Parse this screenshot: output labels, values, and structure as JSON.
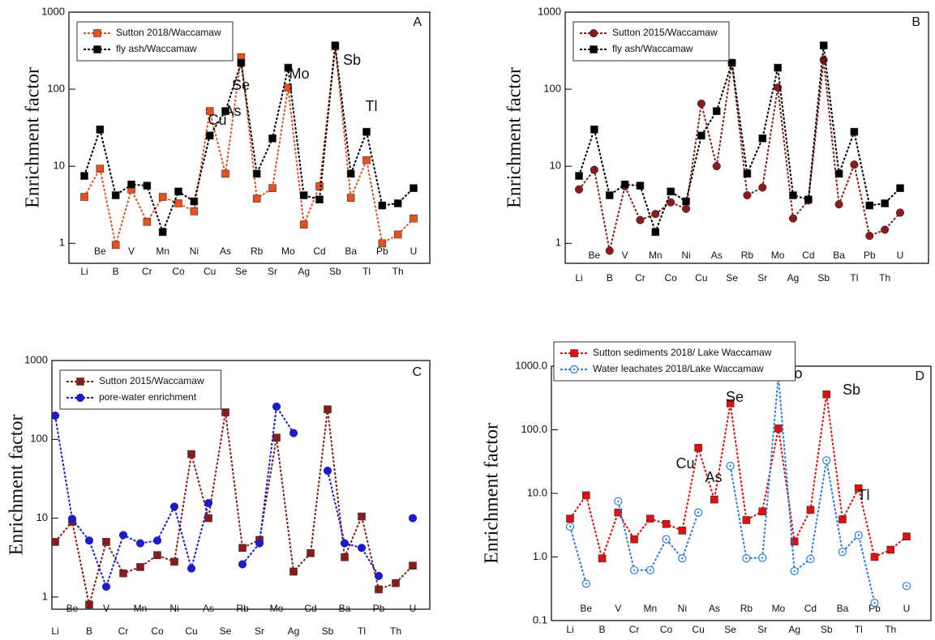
{
  "chart_data": [
    {
      "type": "line",
      "label": "A",
      "ylabel": "Enrichment factor",
      "log_scale": true,
      "legend": "upper left",
      "categories": [
        "Li",
        "Be",
        "B",
        "V",
        "Cr",
        "Mn",
        "Co",
        "Ni",
        "Cu",
        "As",
        "Se",
        "Rb",
        "Sr",
        "Mo",
        "Ag",
        "Cd",
        "Sb",
        "Ba",
        "Tl",
        "Pb",
        "Th",
        "U"
      ],
      "series": [
        {
          "name": "Sutton 2018/Waccamaw",
          "color": "#e8501e",
          "marker": "square",
          "values": [
            4,
            9.3,
            0.95,
            5,
            1.9,
            4,
            3.3,
            2.6,
            52,
            8,
            260,
            3.8,
            5.2,
            105,
            1.75,
            5.5,
            360,
            3.9,
            12,
            1.0,
            1.3,
            2.1
          ]
        },
        {
          "name": "fly ash/Waccamaw",
          "color": "#000000",
          "marker": "square",
          "values": [
            7.5,
            30,
            4.2,
            5.8,
            5.6,
            1.4,
            4.7,
            3.5,
            25,
            52,
            220,
            8,
            23,
            190,
            4.2,
            3.7,
            370,
            8,
            28,
            3.1,
            3.3,
            5.2
          ]
        }
      ],
      "ylim": [
        0.55,
        1000
      ],
      "yticks": [
        1,
        10,
        100,
        1000
      ],
      "annotations": [
        "Cu",
        "As",
        "Se",
        "Mo",
        "Sb",
        "Tl"
      ]
    },
    {
      "type": "line",
      "label": "B",
      "ylabel": "Enrichment factor",
      "log_scale": true,
      "legend": "upper left",
      "categories": [
        "Li",
        "Be",
        "B",
        "V",
        "Cr",
        "Mn",
        "Co",
        "Ni",
        "Cu",
        "As",
        "Se",
        "Rb",
        "Sr",
        "Mo",
        "Ag",
        "Cd",
        "Sb",
        "Ba",
        "Tl",
        "Pb",
        "Th",
        "U"
      ],
      "series": [
        {
          "name": "Sutton 2015/Waccamaw",
          "color": "#8b1a1a",
          "marker": "circle",
          "values": [
            5,
            9,
            0.8,
            5.5,
            2,
            2.4,
            3.4,
            2.8,
            65,
            10,
            220,
            4.2,
            5.3,
            105,
            2.1,
            3.6,
            240,
            3.2,
            10.5,
            1.25,
            1.5,
            2.5
          ]
        },
        {
          "name": "fly ash/Waccamaw",
          "color": "#000000",
          "marker": "square",
          "values": [
            7.5,
            30,
            4.2,
            5.8,
            5.6,
            1.4,
            4.7,
            3.5,
            25,
            52,
            220,
            8,
            23,
            190,
            4.2,
            3.7,
            370,
            8,
            28,
            3.1,
            3.3,
            5.2
          ]
        }
      ],
      "ylim": [
        0.55,
        1000
      ],
      "yticks": [
        1,
        10,
        100,
        1000
      ]
    },
    {
      "type": "line",
      "label": "C",
      "ylabel": "Enrichment factor",
      "log_scale": true,
      "legend": "upper left",
      "categories": [
        "Li",
        "Be",
        "B",
        "V",
        "Cr",
        "Mn",
        "Co",
        "Ni",
        "Cu",
        "As",
        "Se",
        "Rb",
        "Sr",
        "Mo",
        "Ag",
        "Cd",
        "Sb",
        "Ba",
        "Tl",
        "Pb",
        "Th",
        "U"
      ],
      "series": [
        {
          "name": "Sutton 2015/Waccamaw",
          "color": "#8b1a1a",
          "marker": "square",
          "values": [
            5,
            9,
            0.8,
            5,
            2,
            2.4,
            3.4,
            2.8,
            65,
            10,
            220,
            4.2,
            5.3,
            105,
            2.1,
            3.6,
            240,
            3.2,
            10.5,
            1.25,
            1.5,
            2.5
          ]
        },
        {
          "name": "pore-water enrichment",
          "color": "#1a1ad8",
          "marker": "circle",
          "values": [
            200,
            9.8,
            5.2,
            1.35,
            6.1,
            4.8,
            5.2,
            14,
            2.3,
            15.5,
            null,
            2.6,
            4.8,
            260,
            120,
            null,
            40,
            4.8,
            4.2,
            1.85,
            null,
            10
          ]
        }
      ],
      "ylim": [
        0.7,
        1000
      ],
      "yticks": [
        1,
        10,
        100,
        1000
      ]
    },
    {
      "type": "line",
      "label": "D",
      "ylabel": "Enrichment factor",
      "log_scale": true,
      "legend": "above",
      "categories": [
        "Li",
        "Be",
        "B",
        "V",
        "Cr",
        "Mn",
        "Co",
        "Ni",
        "Cu",
        "As",
        "Se",
        "Rb",
        "Sr",
        "Mo",
        "Ag",
        "Cd",
        "Sb",
        "Ba",
        "Tl",
        "Pb",
        "Th",
        "U"
      ],
      "series": [
        {
          "name": "Sutton sediments 2018/ Lake Waccamaw",
          "color": "#e01010",
          "marker": "square",
          "values": [
            4,
            9.3,
            0.95,
            5,
            1.9,
            4,
            3.3,
            2.6,
            52,
            8,
            260,
            3.8,
            5.2,
            105,
            1.75,
            5.5,
            360,
            3.9,
            12,
            1.0,
            1.3,
            2.1
          ]
        },
        {
          "name": "Water leachates 2018/Lake Waccamaw",
          "color": "#2a7de1",
          "marker": "open-circle",
          "values": [
            3,
            0.38,
            null,
            7.5,
            0.62,
            0.62,
            1.9,
            0.95,
            5,
            null,
            27,
            0.95,
            0.97,
            700,
            0.6,
            0.93,
            33,
            1.2,
            2.2,
            0.19,
            null,
            0.35
          ]
        }
      ],
      "ylim": [
        0.1,
        1000
      ],
      "yticks": [
        {
          "value": 0.1,
          "label": "0.1"
        },
        {
          "value": 1,
          "label": "1.0"
        },
        {
          "value": 10,
          "label": "10.0"
        },
        {
          "value": 100,
          "label": "100.0"
        },
        {
          "value": 1000,
          "label": "1000.0"
        }
      ],
      "annotations": [
        "Cu",
        "As",
        "Se",
        "Mo",
        "Sb",
        "Tl"
      ]
    }
  ]
}
